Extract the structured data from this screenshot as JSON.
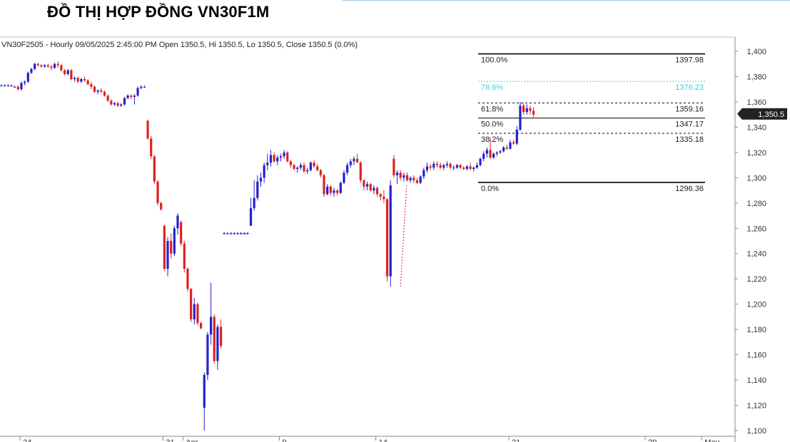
{
  "page": {
    "title": "ĐỒ THỊ HỢP ĐỒNG VN30F1M"
  },
  "chart_info": "VN30F2505 - Hourly 09/05/2025 2:45:00 PM Open 1350.5, Hi 1350.5, Lo 1350.5, Close 1350.5 (0.0%)",
  "colors": {
    "up": "#2222cc",
    "down": "#dd2222",
    "fib_highlight": "#44c8d8",
    "price_tag": "#222222"
  },
  "chart_data": {
    "type": "candlestick",
    "title": "",
    "ylim": [
      1096,
      1410
    ],
    "y_ticks": [
      "1,400",
      "1,380",
      "1,360",
      "1,340",
      "1,320",
      "1,300",
      "1,280",
      "1,260",
      "1,240",
      "1,220",
      "1,200",
      "1,180",
      "1,160",
      "1,140",
      "1,120",
      "1,100"
    ],
    "y_tick_values": [
      1400,
      1380,
      1360,
      1340,
      1320,
      1300,
      1280,
      1260,
      1240,
      1220,
      1200,
      1180,
      1160,
      1140,
      1120,
      1100
    ],
    "x_ticks": [
      "24",
      "31",
      "Apr",
      "9",
      "14",
      "21",
      "29",
      "May"
    ],
    "x_tick_index": [
      0,
      43,
      49,
      78,
      107,
      147,
      188,
      205
    ],
    "last_price_label": "1,350.5",
    "last_price": 1350.5,
    "fibonacci": [
      {
        "label": "100.0%",
        "value_label": "1397.98",
        "value": 1397.98,
        "highlight": false,
        "style": "solid"
      },
      {
        "label": "78.6%",
        "value_label": "1376.23",
        "value": 1376.23,
        "highlight": true,
        "style": "dotted"
      },
      {
        "label": "61.8%",
        "value_label": "1359.16",
        "value": 1359.16,
        "highlight": false,
        "style": "dashed"
      },
      {
        "label": "50.0%",
        "value_label": "1347.17",
        "value": 1347.17,
        "highlight": false,
        "style": "solid"
      },
      {
        "label": "38.2%",
        "value_label": "1335.18",
        "value": 1335.18,
        "highlight": false,
        "style": "dashed"
      },
      {
        "label": "0.0%",
        "value_label": "1296.36",
        "value": 1296.36,
        "highlight": false,
        "style": "solid"
      }
    ],
    "candles": [
      [
        1373,
        1374,
        1372,
        1373
      ],
      [
        1373,
        1374,
        1372,
        1373
      ],
      [
        1373,
        1374,
        1372,
        1373
      ],
      [
        1373,
        1374,
        1372,
        1372
      ],
      [
        1372,
        1373,
        1371,
        1372
      ],
      [
        1372,
        1373,
        1369,
        1370
      ],
      [
        1370,
        1376,
        1369,
        1375
      ],
      [
        1375,
        1377,
        1373,
        1376
      ],
      [
        1376,
        1384,
        1375,
        1383
      ],
      [
        1383,
        1387,
        1382,
        1386
      ],
      [
        1386,
        1391,
        1385,
        1390
      ],
      [
        1390,
        1391,
        1388,
        1389
      ],
      [
        1389,
        1390,
        1387,
        1388
      ],
      [
        1388,
        1390,
        1387,
        1389
      ],
      [
        1389,
        1390,
        1387,
        1388
      ],
      [
        1388,
        1389,
        1385,
        1387
      ],
      [
        1387,
        1391,
        1386,
        1390
      ],
      [
        1390,
        1392,
        1387,
        1389
      ],
      [
        1389,
        1390,
        1384,
        1385
      ],
      [
        1385,
        1386,
        1381,
        1382
      ],
      [
        1382,
        1386,
        1381,
        1385
      ],
      [
        1385,
        1386,
        1377,
        1378
      ],
      [
        1378,
        1380,
        1376,
        1379
      ],
      [
        1379,
        1380,
        1375,
        1376
      ],
      [
        1376,
        1379,
        1375,
        1378
      ],
      [
        1378,
        1380,
        1376,
        1377
      ],
      [
        1377,
        1378,
        1373,
        1374
      ],
      [
        1374,
        1376,
        1370,
        1372
      ],
      [
        1372,
        1373,
        1367,
        1368
      ],
      [
        1368,
        1370,
        1366,
        1369
      ],
      [
        1369,
        1371,
        1367,
        1368
      ],
      [
        1368,
        1369,
        1364,
        1365
      ],
      [
        1365,
        1366,
        1360,
        1361
      ],
      [
        1361,
        1362,
        1357,
        1358
      ],
      [
        1358,
        1360,
        1357,
        1359
      ],
      [
        1359,
        1360,
        1356,
        1357
      ],
      [
        1357,
        1359,
        1356,
        1358
      ],
      [
        1358,
        1364,
        1357,
        1363
      ],
      [
        1363,
        1366,
        1362,
        1365
      ],
      [
        1365,
        1366,
        1362,
        1364
      ],
      [
        1364,
        1366,
        1358,
        1365
      ],
      [
        1365,
        1372,
        1364,
        1371
      ],
      [
        1371,
        1373,
        1370,
        1372
      ],
      [
        1372,
        1373,
        1371,
        1372
      ],
      [
        1345,
        1346,
        1330,
        1331
      ],
      [
        1331,
        1333,
        1315,
        1317
      ],
      [
        1317,
        1318,
        1295,
        1297
      ],
      [
        1297,
        1298,
        1278,
        1280
      ],
      [
        1280,
        1281,
        1274,
        1275
      ],
      [
        1262,
        1263,
        1226,
        1228
      ],
      [
        1228,
        1253,
        1222,
        1250
      ],
      [
        1250,
        1256,
        1236,
        1240
      ],
      [
        1240,
        1262,
        1238,
        1260
      ],
      [
        1260,
        1272,
        1255,
        1270
      ],
      [
        1265,
        1266,
        1246,
        1248
      ],
      [
        1248,
        1250,
        1225,
        1228
      ],
      [
        1228,
        1229,
        1210,
        1212
      ],
      [
        1212,
        1213,
        1186,
        1188
      ],
      [
        1188,
        1205,
        1184,
        1200
      ],
      [
        1200,
        1201,
        1183,
        1185
      ],
      [
        1185,
        1186,
        1180,
        1181
      ],
      [
        1118,
        1146,
        1100,
        1144
      ],
      [
        1144,
        1178,
        1140,
        1176
      ],
      [
        1176,
        1217,
        1168,
        1190
      ],
      [
        1190,
        1192,
        1153,
        1155
      ],
      [
        1155,
        1184,
        1148,
        1182
      ],
      [
        1182,
        1188,
        1165,
        1167
      ],
      [
        1256,
        1257,
        1255,
        1256
      ],
      [
        1256,
        1257,
        1255,
        1256
      ],
      [
        1256,
        1257,
        1255,
        1256
      ],
      [
        1256,
        1257,
        1255,
        1256
      ],
      [
        1256,
        1257,
        1255,
        1256
      ],
      [
        1256,
        1257,
        1255,
        1256
      ],
      [
        1256,
        1257,
        1255,
        1256
      ],
      [
        1256,
        1257,
        1255,
        1256
      ],
      [
        1262,
        1284,
        1262,
        1276
      ],
      [
        1276,
        1298,
        1274,
        1284
      ],
      [
        1284,
        1302,
        1282,
        1297
      ],
      [
        1297,
        1304,
        1293,
        1300
      ],
      [
        1300,
        1312,
        1296,
        1310
      ],
      [
        1310,
        1319,
        1306,
        1312
      ],
      [
        1312,
        1322,
        1309,
        1318
      ],
      [
        1318,
        1320,
        1312,
        1313
      ],
      [
        1313,
        1318,
        1310,
        1316
      ],
      [
        1316,
        1319,
        1313,
        1317
      ],
      [
        1317,
        1322,
        1315,
        1320
      ],
      [
        1320,
        1321,
        1312,
        1313
      ],
      [
        1313,
        1314,
        1308,
        1310
      ],
      [
        1310,
        1311,
        1306,
        1307
      ],
      [
        1307,
        1309,
        1304,
        1308
      ],
      [
        1308,
        1312,
        1306,
        1310
      ],
      [
        1310,
        1312,
        1304,
        1305
      ],
      [
        1305,
        1308,
        1303,
        1306
      ],
      [
        1306,
        1313,
        1305,
        1312
      ],
      [
        1312,
        1314,
        1308,
        1309
      ],
      [
        1309,
        1311,
        1305,
        1306
      ],
      [
        1306,
        1307,
        1300,
        1302
      ],
      [
        1302,
        1303,
        1285,
        1287
      ],
      [
        1287,
        1295,
        1286,
        1293
      ],
      [
        1293,
        1294,
        1286,
        1288
      ],
      [
        1288,
        1292,
        1285,
        1290
      ],
      [
        1290,
        1291,
        1286,
        1288
      ],
      [
        1288,
        1297,
        1287,
        1296
      ],
      [
        1296,
        1306,
        1295,
        1304
      ],
      [
        1304,
        1312,
        1302,
        1310
      ],
      [
        1310,
        1315,
        1308,
        1313
      ],
      [
        1313,
        1317,
        1310,
        1315
      ],
      [
        1315,
        1319,
        1312,
        1312
      ],
      [
        1312,
        1313,
        1296,
        1298
      ],
      [
        1298,
        1299,
        1290,
        1293
      ],
      [
        1293,
        1297,
        1290,
        1295
      ],
      [
        1295,
        1296,
        1289,
        1290
      ],
      [
        1290,
        1294,
        1287,
        1292
      ],
      [
        1292,
        1293,
        1285,
        1287
      ],
      [
        1287,
        1288,
        1282,
        1285
      ],
      [
        1285,
        1290,
        1280,
        1283
      ],
      [
        1283,
        1284,
        1218,
        1222
      ],
      [
        1222,
        1298,
        1214,
        1294
      ],
      [
        1315,
        1318,
        1300,
        1302
      ],
      [
        1302,
        1306,
        1295,
        1304
      ],
      [
        1304,
        1306,
        1298,
        1300
      ],
      [
        1300,
        1304,
        1297,
        1302
      ],
      [
        1302,
        1304,
        1297,
        1298
      ],
      [
        1298,
        1301,
        1296,
        1300
      ],
      [
        1300,
        1302,
        1296,
        1298
      ],
      [
        1298,
        1300,
        1295,
        1296
      ],
      [
        1296,
        1302,
        1295,
        1301
      ],
      [
        1301,
        1308,
        1299,
        1306
      ],
      [
        1306,
        1312,
        1304,
        1309
      ],
      [
        1309,
        1311,
        1306,
        1308
      ],
      [
        1308,
        1313,
        1306,
        1311
      ],
      [
        1311,
        1313,
        1308,
        1310
      ],
      [
        1310,
        1312,
        1307,
        1308
      ],
      [
        1308,
        1311,
        1306,
        1310
      ],
      [
        1310,
        1313,
        1308,
        1311
      ],
      [
        1311,
        1312,
        1307,
        1308
      ],
      [
        1308,
        1310,
        1306,
        1308
      ],
      [
        1308,
        1311,
        1307,
        1310
      ],
      [
        1310,
        1311,
        1307,
        1308
      ],
      [
        1308,
        1309,
        1306,
        1307
      ],
      [
        1307,
        1310,
        1306,
        1309
      ],
      [
        1309,
        1312,
        1306,
        1307
      ],
      [
        1307,
        1309,
        1305,
        1308
      ],
      [
        1308,
        1312,
        1307,
        1310
      ],
      [
        1310,
        1316,
        1309,
        1315
      ],
      [
        1315,
        1321,
        1313,
        1319
      ],
      [
        1319,
        1324,
        1316,
        1322
      ],
      [
        1322,
        1332,
        1315,
        1316
      ],
      [
        1316,
        1320,
        1315,
        1319
      ],
      [
        1319,
        1321,
        1317,
        1320
      ],
      [
        1320,
        1322,
        1319,
        1321
      ],
      [
        1321,
        1325,
        1320,
        1324
      ],
      [
        1324,
        1326,
        1322,
        1323
      ],
      [
        1323,
        1330,
        1322,
        1328
      ],
      [
        1328,
        1330,
        1326,
        1327
      ],
      [
        1327,
        1341,
        1326,
        1338
      ],
      [
        1338,
        1360,
        1337,
        1357
      ],
      [
        1357,
        1359,
        1350,
        1352
      ],
      [
        1352,
        1358,
        1350,
        1355
      ],
      [
        1355,
        1357,
        1350,
        1353
      ],
      [
        1353,
        1356,
        1348,
        1350
      ]
    ]
  }
}
